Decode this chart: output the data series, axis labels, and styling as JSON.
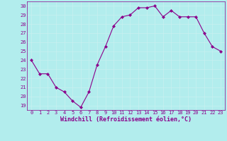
{
  "x": [
    0,
    1,
    2,
    3,
    4,
    5,
    6,
    7,
    8,
    9,
    10,
    11,
    12,
    13,
    14,
    15,
    16,
    17,
    18,
    19,
    20,
    21,
    22,
    23
  ],
  "y": [
    24,
    22.5,
    22.5,
    21,
    20.5,
    19.5,
    18.8,
    20.5,
    23.5,
    25.5,
    27.8,
    28.8,
    29.0,
    29.8,
    29.8,
    30.0,
    28.8,
    29.5,
    28.8,
    28.8,
    28.8,
    27.0,
    25.5,
    25.0
  ],
  "line_color": "#8B008B",
  "marker": "D",
  "marker_size": 2.2,
  "bg_color": "#b2eded",
  "grid_color": "#c8f0f0",
  "xlabel": "Windchill (Refroidissement éolien,°C)",
  "ylim": [
    18.5,
    30.5
  ],
  "xlim": [
    -0.5,
    23.5
  ],
  "yticks": [
    19,
    20,
    21,
    22,
    23,
    24,
    25,
    26,
    27,
    28,
    29,
    30
  ],
  "xticks": [
    0,
    1,
    2,
    3,
    4,
    5,
    6,
    7,
    8,
    9,
    10,
    11,
    12,
    13,
    14,
    15,
    16,
    17,
    18,
    19,
    20,
    21,
    22,
    23
  ],
  "tick_fontsize": 5.0,
  "xlabel_fontsize": 6.0
}
